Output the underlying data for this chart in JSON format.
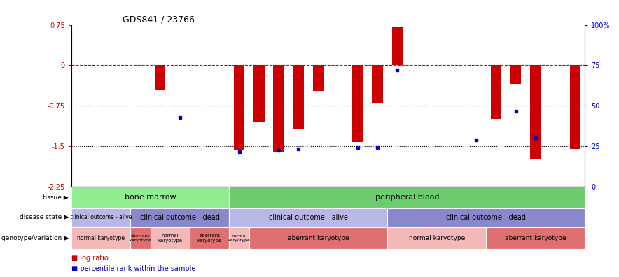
{
  "title": "GDS841 / 23766",
  "samples": [
    "GSM6234",
    "GSM6247",
    "GSM6249",
    "GSM6242",
    "GSM6233",
    "GSM6250",
    "GSM6229",
    "GSM6231",
    "GSM6237",
    "GSM6236",
    "GSM6248",
    "GSM6239",
    "GSM6241",
    "GSM6244",
    "GSM6245",
    "GSM6246",
    "GSM6232",
    "GSM6235",
    "GSM6240",
    "GSM6252",
    "GSM6253",
    "GSM6228",
    "GSM6230",
    "GSM6238",
    "GSM6243",
    "GSM6251"
  ],
  "log_ratio": [
    0,
    0,
    0,
    0,
    -0.45,
    0,
    0,
    0,
    -1.58,
    -1.05,
    -1.6,
    -1.18,
    -0.48,
    0,
    -1.42,
    -0.7,
    0.72,
    0,
    0,
    0,
    0,
    -1.0,
    -0.35,
    -1.75,
    0,
    -1.55
  ],
  "percentile": [
    null,
    null,
    null,
    null,
    null,
    -0.97,
    null,
    null,
    -1.6,
    null,
    -1.58,
    -1.55,
    null,
    null,
    -1.52,
    -1.52,
    -0.08,
    null,
    null,
    null,
    -1.38,
    null,
    -0.85,
    -1.35,
    null,
    null
  ],
  "ylim": [
    -2.25,
    0.75
  ],
  "yticks_red": [
    0.75,
    0,
    -0.75,
    -1.5,
    -2.25
  ],
  "hlines_black": [
    -0.75,
    -1.5
  ],
  "bar_color": "#cc0000",
  "dot_color": "#0000cc",
  "tissue_data": [
    {
      "label": "bone marrow",
      "start": 0,
      "end": 8,
      "color": "#90EE90"
    },
    {
      "label": "peripheral blood",
      "start": 8,
      "end": 26,
      "color": "#6dcc6d"
    }
  ],
  "disease_data": [
    {
      "label": "clinical outcome - alive",
      "start": 0,
      "end": 3,
      "color": "#b8b8e8"
    },
    {
      "label": "clinical outcome - dead",
      "start": 3,
      "end": 8,
      "color": "#8888cc"
    },
    {
      "label": "clinical outcome - alive",
      "start": 8,
      "end": 16,
      "color": "#b8b8e8"
    },
    {
      "label": "clinical outcome - dead",
      "start": 16,
      "end": 26,
      "color": "#8888cc"
    }
  ],
  "geno_data": [
    {
      "label": "normal karyotype",
      "start": 0,
      "end": 3,
      "color": "#f4b8b8"
    },
    {
      "label": "aberrant\nkaryotype",
      "start": 3,
      "end": 4,
      "color": "#e07070"
    },
    {
      "label": "normal\nkaryotype",
      "start": 4,
      "end": 6,
      "color": "#f4b8b8"
    },
    {
      "label": "aberrant\nkaryotype",
      "start": 6,
      "end": 8,
      "color": "#e07070"
    },
    {
      "label": "normal\nkaryotype",
      "start": 8,
      "end": 9,
      "color": "#f4b8b8"
    },
    {
      "label": "aberrant karyotype",
      "start": 9,
      "end": 16,
      "color": "#e07070"
    },
    {
      "label": "normal karyotype",
      "start": 16,
      "end": 21,
      "color": "#f4b8b8"
    },
    {
      "label": "aberrant karyotype",
      "start": 21,
      "end": 26,
      "color": "#e07070"
    }
  ],
  "blue_ticks_pos": [
    -2.25,
    -1.5,
    -0.75,
    0,
    0.75
  ],
  "blue_tick_labels": [
    "0",
    "25",
    "50",
    "75",
    "100%"
  ]
}
